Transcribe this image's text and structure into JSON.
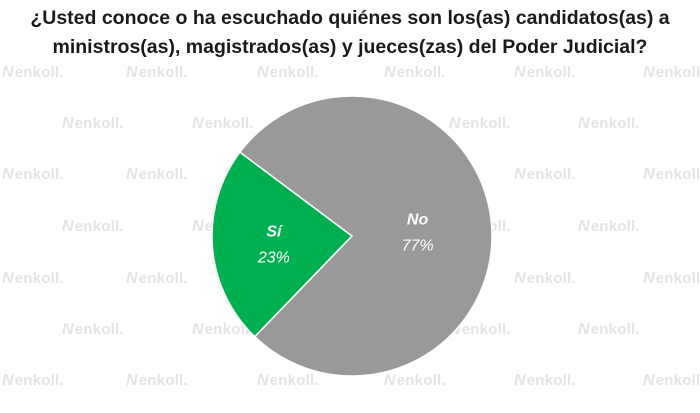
{
  "watermark": {
    "text": "enkoll."
  },
  "chart_data": {
    "type": "pie",
    "title_lines": [
      "¿Usted conoce o ha escuchado quiénes son los(as) candidatos(as) a",
      "ministros(as), magistrados(as) y jueces(zas) del Poder Judicial?"
    ],
    "categories": [
      "Sí",
      "No"
    ],
    "values": [
      23,
      77
    ],
    "value_labels": [
      "23%",
      "77%"
    ],
    "colors": [
      "#00b050",
      "#999999"
    ]
  }
}
